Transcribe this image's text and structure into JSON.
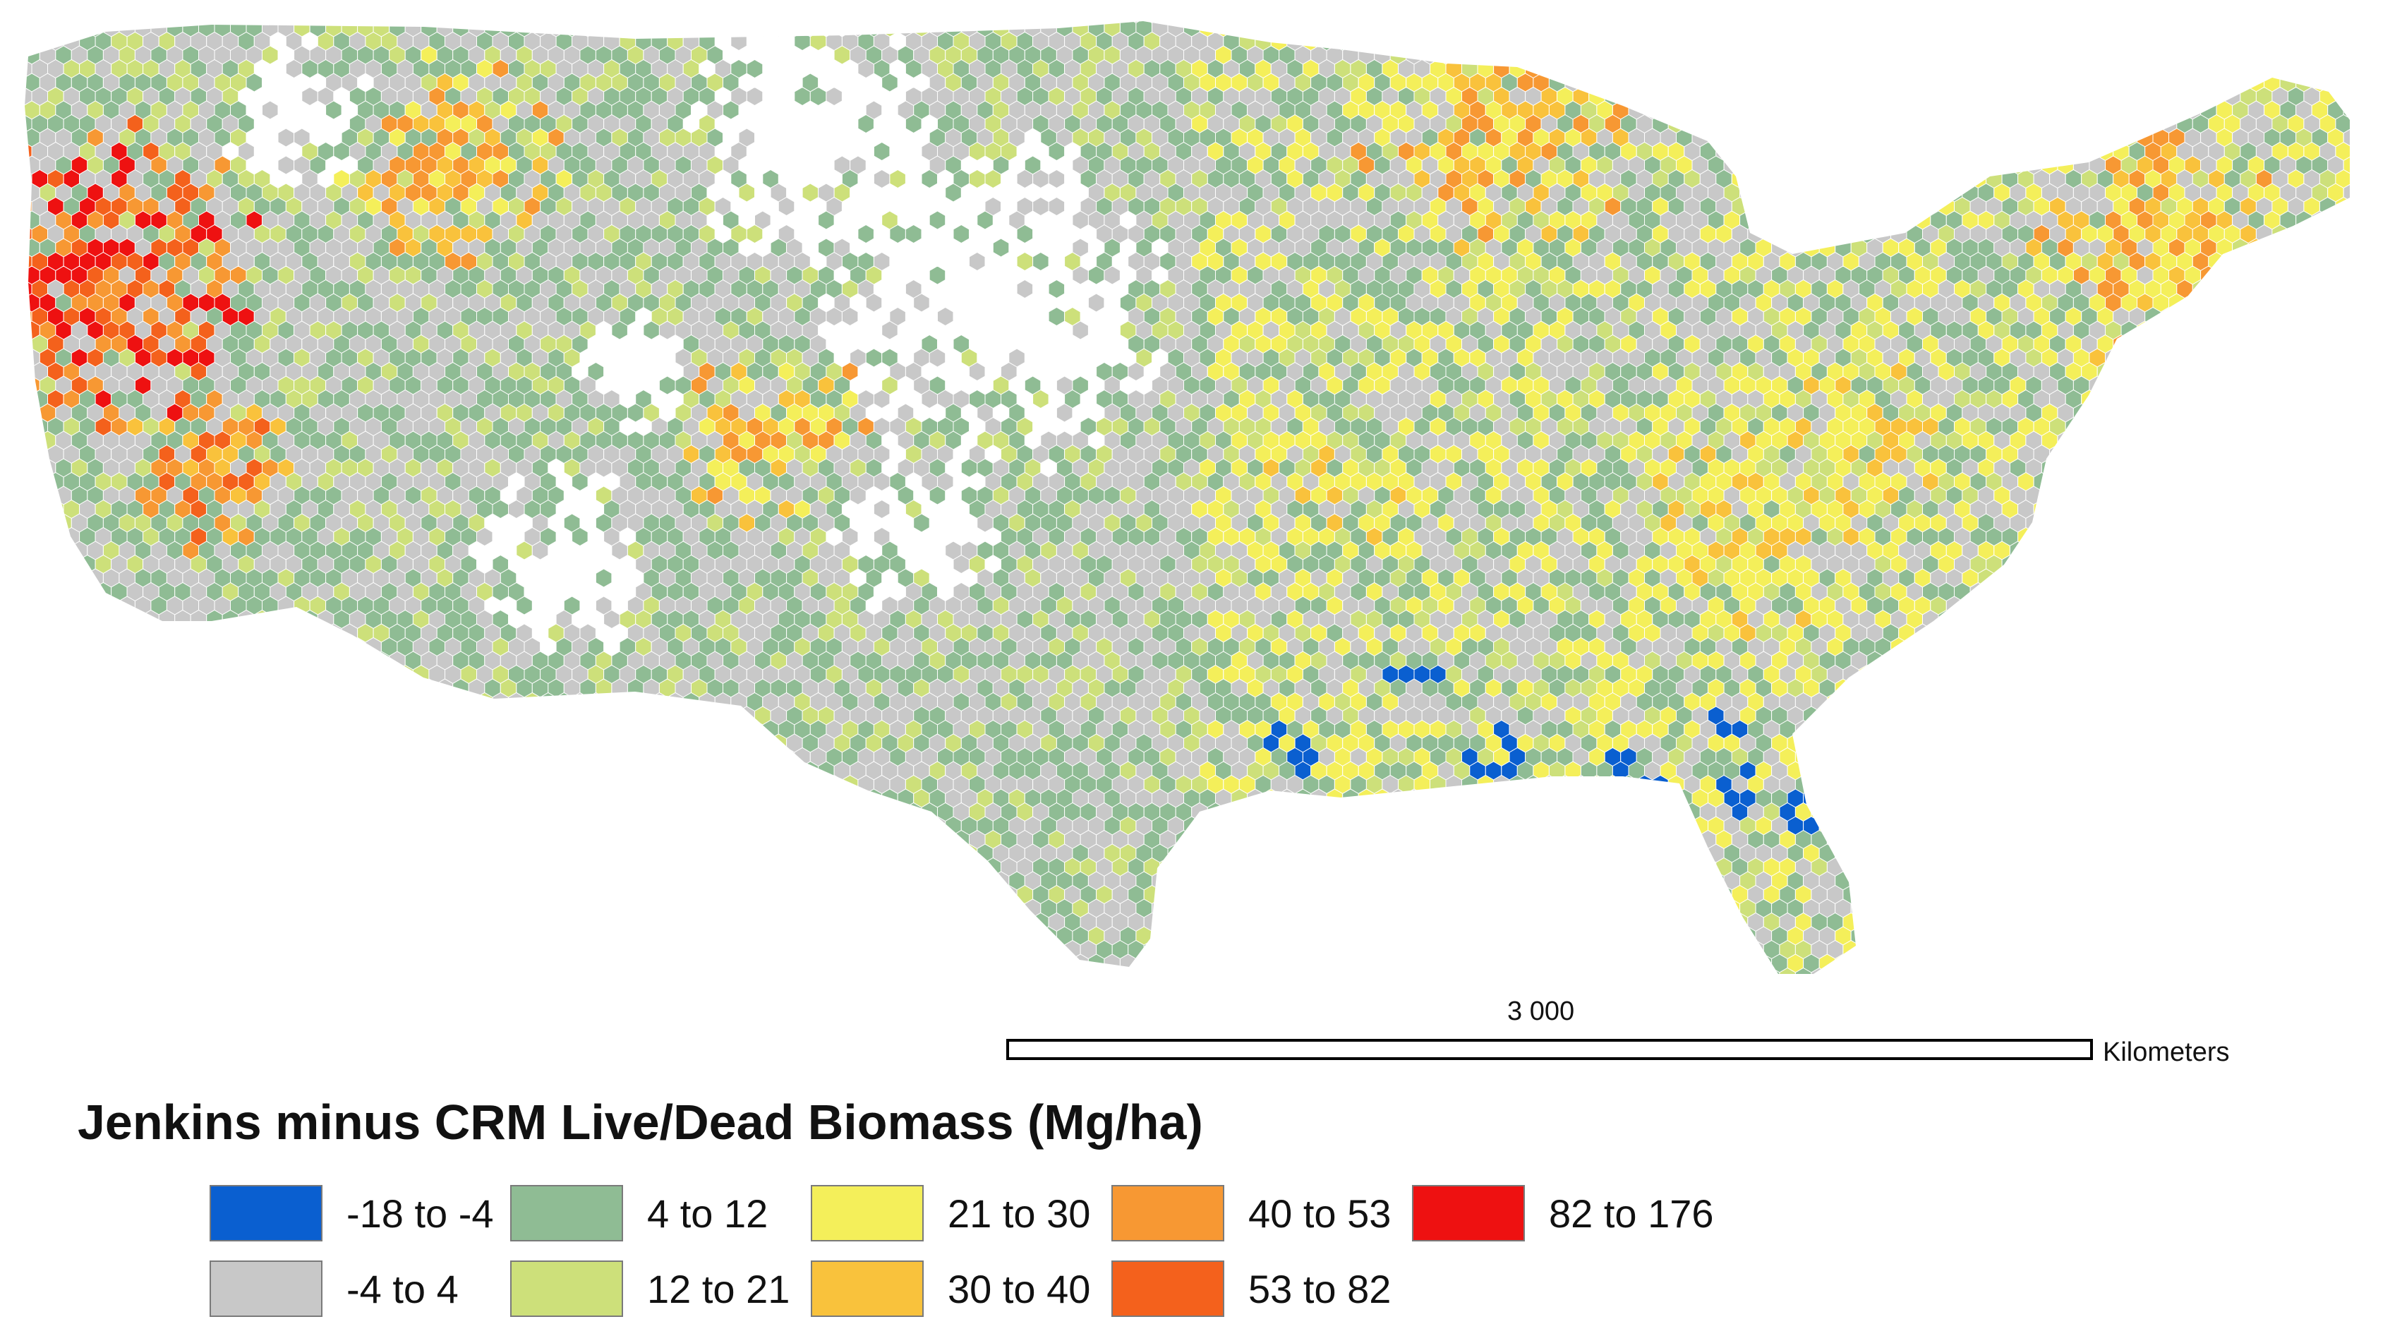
{
  "legend": {
    "title": "Jenkins minus CRM Live/Dead Biomass (Mg/ha)",
    "classes": [
      {
        "label": "-18 to -4",
        "color": "#0a5fd0"
      },
      {
        "label": "-4 to 4",
        "color": "#c8c8c8"
      },
      {
        "label": "4 to 12",
        "color": "#8fbc94"
      },
      {
        "label": "12 to 21",
        "color": "#cde07a"
      },
      {
        "label": "21 to 30",
        "color": "#f4ef5a"
      },
      {
        "label": "30 to 40",
        "color": "#f9c23c"
      },
      {
        "label": "40 to 53",
        "color": "#f79833"
      },
      {
        "label": "53 to 82",
        "color": "#f4611c"
      },
      {
        "label": "82 to 176",
        "color": "#ee1111"
      }
    ]
  },
  "scale_bar": {
    "value": "3 000",
    "unit": "Kilometers"
  }
}
